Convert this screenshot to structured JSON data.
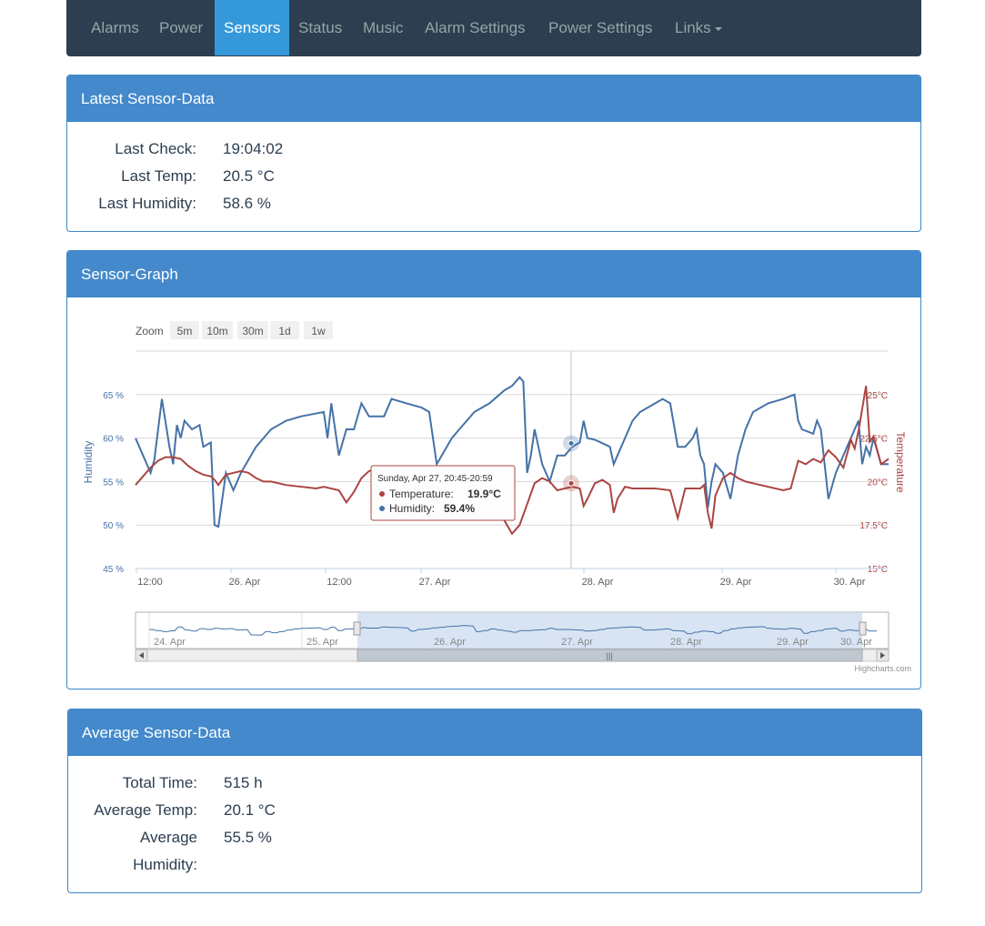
{
  "nav": {
    "items": [
      {
        "label": "Alarms",
        "active": false
      },
      {
        "label": "Power",
        "active": false
      },
      {
        "label": "Sensors",
        "active": true
      },
      {
        "label": "Status",
        "active": false
      },
      {
        "label": "Music",
        "active": false
      },
      {
        "label": "Alarm Settings",
        "active": false
      },
      {
        "label": "Power Settings",
        "active": false
      },
      {
        "label": "Links",
        "active": false,
        "dropdown": true
      }
    ]
  },
  "latest": {
    "title": "Latest Sensor-Data",
    "last_check_label": "Last Check:",
    "last_check_value": "19:04:02",
    "last_temp_label": "Last Temp:",
    "last_temp_value": "20.5 °C",
    "last_humidity_label": "Last Humidity:",
    "last_humidity_value": "58.6 %"
  },
  "graph": {
    "title": "Sensor-Graph",
    "zoom_label": "Zoom",
    "zoom_buttons": [
      "5m",
      "10m",
      "30m",
      "1d",
      "1w"
    ],
    "credits": "Highcharts.com"
  },
  "chart_data": {
    "type": "line",
    "y_left": {
      "label": "Humidity",
      "ticks": [
        "45 %",
        "50 %",
        "55 %",
        "60 %",
        "65 %"
      ],
      "range": [
        45,
        70
      ]
    },
    "y_right": {
      "label": "Temperature",
      "ticks": [
        "15°C",
        "17.5°C",
        "20°C",
        "22.5°C",
        "25°C"
      ],
      "range": [
        15,
        27.5
      ]
    },
    "x_ticks": [
      "12:00",
      "26. Apr",
      "12:00",
      "27. Apr",
      "28. Apr",
      "29. Apr",
      "30. Apr"
    ],
    "navigator_ticks": [
      "24. Apr",
      "25. Apr",
      "26. Apr",
      "27. Apr",
      "28. Apr",
      "29. Apr",
      "30. Apr"
    ],
    "series": [
      {
        "name": "Humidity",
        "color": "#4572a7",
        "points": [
          [
            0,
            60
          ],
          [
            0.01,
            58
          ],
          [
            0.02,
            56
          ],
          [
            0.025,
            57.5
          ],
          [
            0.035,
            64.5
          ],
          [
            0.045,
            59
          ],
          [
            0.05,
            57
          ],
          [
            0.055,
            61.5
          ],
          [
            0.06,
            60
          ],
          [
            0.065,
            62
          ],
          [
            0.075,
            61
          ],
          [
            0.085,
            61.5
          ],
          [
            0.09,
            59
          ],
          [
            0.1,
            59.5
          ],
          [
            0.105,
            50
          ],
          [
            0.11,
            49.8
          ],
          [
            0.12,
            56
          ],
          [
            0.13,
            54
          ],
          [
            0.14,
            56
          ],
          [
            0.16,
            59
          ],
          [
            0.18,
            61
          ],
          [
            0.2,
            62
          ],
          [
            0.22,
            62.5
          ],
          [
            0.25,
            63
          ],
          [
            0.255,
            60
          ],
          [
            0.26,
            64
          ],
          [
            0.27,
            58
          ],
          [
            0.28,
            61
          ],
          [
            0.29,
            61
          ],
          [
            0.3,
            64
          ],
          [
            0.31,
            62.5
          ],
          [
            0.33,
            62.5
          ],
          [
            0.34,
            64.5
          ],
          [
            0.36,
            64
          ],
          [
            0.38,
            63.5
          ],
          [
            0.39,
            63
          ],
          [
            0.4,
            57
          ],
          [
            0.42,
            60
          ],
          [
            0.43,
            61
          ],
          [
            0.45,
            63
          ],
          [
            0.47,
            64
          ],
          [
            0.49,
            65.5
          ],
          [
            0.5,
            66
          ],
          [
            0.51,
            67
          ],
          [
            0.515,
            66.5
          ],
          [
            0.52,
            56
          ],
          [
            0.525,
            58
          ],
          [
            0.53,
            61
          ],
          [
            0.535,
            59
          ],
          [
            0.54,
            57
          ],
          [
            0.55,
            55
          ],
          [
            0.56,
            58
          ],
          [
            0.57,
            58
          ],
          [
            0.58,
            59
          ],
          [
            0.59,
            59.5
          ],
          [
            0.595,
            62
          ],
          [
            0.6,
            60
          ],
          [
            0.61,
            59.8
          ],
          [
            0.62,
            59.4
          ],
          [
            0.63,
            59
          ],
          [
            0.635,
            57
          ],
          [
            0.64,
            58
          ],
          [
            0.65,
            60
          ],
          [
            0.66,
            62
          ],
          [
            0.67,
            63
          ],
          [
            0.69,
            64
          ],
          [
            0.7,
            64.5
          ],
          [
            0.71,
            64
          ],
          [
            0.72,
            59
          ],
          [
            0.73,
            59
          ],
          [
            0.74,
            60
          ],
          [
            0.745,
            61
          ],
          [
            0.75,
            58
          ],
          [
            0.755,
            57
          ],
          [
            0.76,
            52
          ],
          [
            0.765,
            55
          ],
          [
            0.77,
            57
          ],
          [
            0.78,
            56
          ],
          [
            0.79,
            53
          ],
          [
            0.8,
            58
          ],
          [
            0.81,
            61
          ],
          [
            0.82,
            63
          ],
          [
            0.84,
            64
          ],
          [
            0.86,
            64.5
          ],
          [
            0.875,
            65
          ],
          [
            0.88,
            62
          ],
          [
            0.885,
            61
          ],
          [
            0.9,
            60.5
          ],
          [
            0.905,
            62
          ],
          [
            0.91,
            61
          ],
          [
            0.92,
            53
          ],
          [
            0.93,
            56
          ],
          [
            0.94,
            58
          ],
          [
            0.955,
            61
          ],
          [
            0.96,
            62
          ],
          [
            0.965,
            57
          ],
          [
            0.97,
            59
          ],
          [
            0.975,
            58
          ],
          [
            0.98,
            60
          ],
          [
            0.99,
            57
          ],
          [
            1.0,
            57
          ]
        ]
      },
      {
        "name": "Temperature",
        "color": "#aa4643",
        "points": [
          [
            0,
            19.8
          ],
          [
            0.02,
            20.8
          ],
          [
            0.03,
            21.2
          ],
          [
            0.04,
            21.4
          ],
          [
            0.05,
            21.4
          ],
          [
            0.06,
            21.3
          ],
          [
            0.07,
            20.9
          ],
          [
            0.08,
            20.6
          ],
          [
            0.09,
            20.4
          ],
          [
            0.1,
            20.3
          ],
          [
            0.105,
            20.1
          ],
          [
            0.11,
            19.8
          ],
          [
            0.12,
            20.4
          ],
          [
            0.14,
            20.6
          ],
          [
            0.15,
            20.5
          ],
          [
            0.16,
            20.2
          ],
          [
            0.17,
            20
          ],
          [
            0.18,
            20
          ],
          [
            0.2,
            19.8
          ],
          [
            0.24,
            19.6
          ],
          [
            0.25,
            19.7
          ],
          [
            0.27,
            19.5
          ],
          [
            0.28,
            18.8
          ],
          [
            0.29,
            19.4
          ],
          [
            0.3,
            20.2
          ],
          [
            0.31,
            20.6
          ],
          [
            0.33,
            20.8
          ],
          [
            0.35,
            20.7
          ],
          [
            0.37,
            20.5
          ],
          [
            0.39,
            20.3
          ],
          [
            0.42,
            20.2
          ],
          [
            0.44,
            20.1
          ],
          [
            0.46,
            19.7
          ],
          [
            0.48,
            18.5
          ],
          [
            0.5,
            17
          ],
          [
            0.51,
            17.5
          ],
          [
            0.52,
            18.7
          ],
          [
            0.53,
            19.9
          ],
          [
            0.54,
            20.2
          ],
          [
            0.55,
            20.0
          ],
          [
            0.56,
            19.5
          ],
          [
            0.57,
            19.6
          ],
          [
            0.58,
            19.7
          ],
          [
            0.59,
            19.6
          ],
          [
            0.595,
            18.6
          ],
          [
            0.6,
            19.0
          ],
          [
            0.61,
            19.9
          ],
          [
            0.62,
            20.1
          ],
          [
            0.63,
            19.8
          ],
          [
            0.635,
            18.2
          ],
          [
            0.64,
            19.0
          ],
          [
            0.65,
            19.7
          ],
          [
            0.66,
            19.6
          ],
          [
            0.69,
            19.6
          ],
          [
            0.71,
            19.5
          ],
          [
            0.72,
            17.9
          ],
          [
            0.73,
            19.6
          ],
          [
            0.74,
            19.6
          ],
          [
            0.75,
            19.6
          ],
          [
            0.755,
            19.8
          ],
          [
            0.76,
            18.2
          ],
          [
            0.765,
            17.3
          ],
          [
            0.77,
            19.2
          ],
          [
            0.78,
            20.2
          ],
          [
            0.79,
            20.5
          ],
          [
            0.8,
            20.2
          ],
          [
            0.81,
            20.0
          ],
          [
            0.83,
            19.8
          ],
          [
            0.86,
            19.5
          ],
          [
            0.87,
            19.6
          ],
          [
            0.88,
            21.2
          ],
          [
            0.89,
            21
          ],
          [
            0.9,
            21.3
          ],
          [
            0.91,
            21.1
          ],
          [
            0.92,
            21.8
          ],
          [
            0.93,
            21.4
          ],
          [
            0.94,
            20.8
          ],
          [
            0.95,
            22.4
          ],
          [
            0.955,
            21.9
          ],
          [
            0.96,
            22.9
          ],
          [
            0.97,
            25.5
          ],
          [
            0.975,
            22.3
          ],
          [
            0.98,
            22.6
          ],
          [
            0.99,
            21
          ],
          [
            1.0,
            21.3
          ]
        ]
      }
    ],
    "tooltip": {
      "header": "Sunday, Apr 27, 20:45-20:59",
      "temp_label": "Temperature:",
      "temp_value": "19.9°C",
      "hum_label": "Humidity:",
      "hum_value": "59.4%"
    }
  },
  "average": {
    "title": "Average Sensor-Data",
    "total_time_label": "Total Time:",
    "total_time_value": "515 h",
    "avg_temp_label": "Average Temp:",
    "avg_temp_value": "20.1 °C",
    "avg_hum_label_1": "Average",
    "avg_hum_label_2": "Humidity:",
    "avg_hum_value": "55.5 %"
  }
}
